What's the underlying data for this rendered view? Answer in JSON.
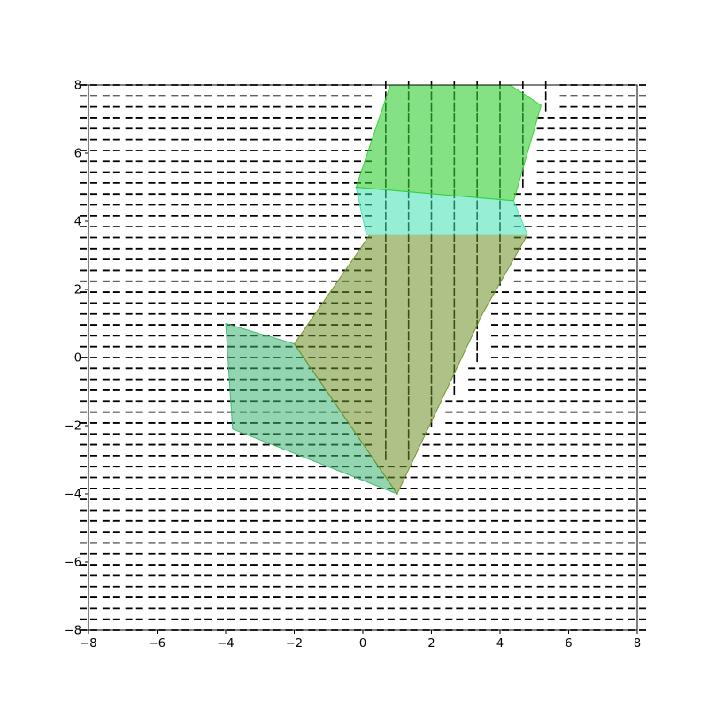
{
  "chart_data": {
    "type": "vector-field-with-polygons",
    "title": "",
    "xlabel": "",
    "ylabel": "",
    "xlim": [
      -8,
      8
    ],
    "ylim": [
      -8,
      8
    ],
    "xticks": [
      -8,
      -6,
      -4,
      -2,
      0,
      2,
      4,
      6,
      8
    ],
    "yticks": [
      -8,
      -6,
      -4,
      -2,
      0,
      2,
      4,
      6,
      8
    ],
    "xtick_labels": [
      "−8",
      "−6",
      "−4",
      "−2",
      "0",
      "2",
      "4",
      "6",
      "8"
    ],
    "ytick_labels": [
      "−8",
      "−6",
      "−4",
      "−2",
      "0",
      "2",
      "4",
      "6",
      "8"
    ],
    "grid": false,
    "legend": "none",
    "quiver": {
      "color": "#000000",
      "description_values": "horizontal arrows outside strip, vertical arrows in band between separating curves",
      "left_boundary": [
        [
          0.8,
          -8
        ],
        [
          0.8,
          -4
        ],
        [
          0.2,
          0
        ],
        [
          0.0,
          3.5
        ],
        [
          0.2,
          5.5
        ],
        [
          0.5,
          8
        ]
      ],
      "right_boundary": [
        [
          1.0,
          -8
        ],
        [
          1.0,
          -3.5
        ],
        [
          3.5,
          0
        ],
        [
          4.5,
          4
        ],
        [
          5.0,
          6.5
        ],
        [
          5.7,
          8
        ]
      ]
    },
    "polygons": [
      {
        "color": "#3cb371",
        "opacity": 0.55,
        "vertices": [
          [
            -4,
            1
          ],
          [
            -2,
            0.4
          ],
          [
            1,
            -4
          ],
          [
            -3.8,
            -2.1
          ]
        ]
      },
      {
        "color": "#6b8e23",
        "opacity": 0.55,
        "vertices": [
          [
            -2,
            0.4
          ],
          [
            0.2,
            3.6
          ],
          [
            4.8,
            3.6
          ],
          [
            3.5,
            1.3
          ],
          [
            1,
            -4
          ]
        ]
      },
      {
        "color": "#40e0b0",
        "opacity": 0.55,
        "vertices": [
          [
            -0.2,
            5
          ],
          [
            4.4,
            4.6
          ],
          [
            4.8,
            3.6
          ],
          [
            0.1,
            3.6
          ]
        ]
      },
      {
        "color": "#32cd32",
        "opacity": 0.6,
        "vertices": [
          [
            -0.2,
            5
          ],
          [
            0.8,
            8
          ],
          [
            4.3,
            8
          ],
          [
            5.2,
            7.4
          ],
          [
            4.4,
            4.6
          ]
        ]
      }
    ]
  }
}
